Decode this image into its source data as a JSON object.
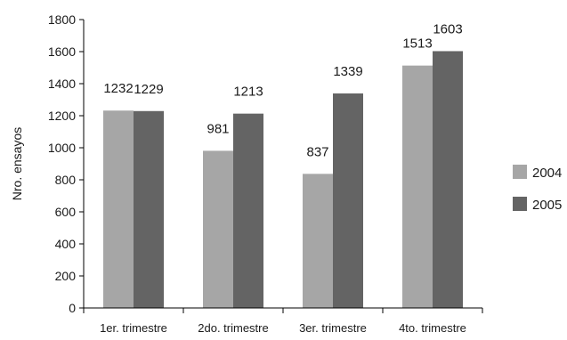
{
  "chart_data": {
    "type": "bar",
    "title": "",
    "xlabel": "",
    "ylabel": "Nro. ensayos",
    "ylim": [
      0,
      1800
    ],
    "yticks": [
      0,
      200,
      400,
      600,
      800,
      1000,
      1200,
      1400,
      1600,
      1800
    ],
    "categories": [
      "1er. trimestre",
      "2do. trimestre",
      "3er. trimestre",
      "4to. trimestre"
    ],
    "series": [
      {
        "name": "2004",
        "values": [
          1232,
          981,
          837,
          1513
        ],
        "color": "#a6a6a6"
      },
      {
        "name": "2005",
        "values": [
          1229,
          1213,
          1339,
          1603
        ],
        "color": "#646464"
      }
    ],
    "data_labels": true,
    "grid": false,
    "legend_position": "right"
  }
}
